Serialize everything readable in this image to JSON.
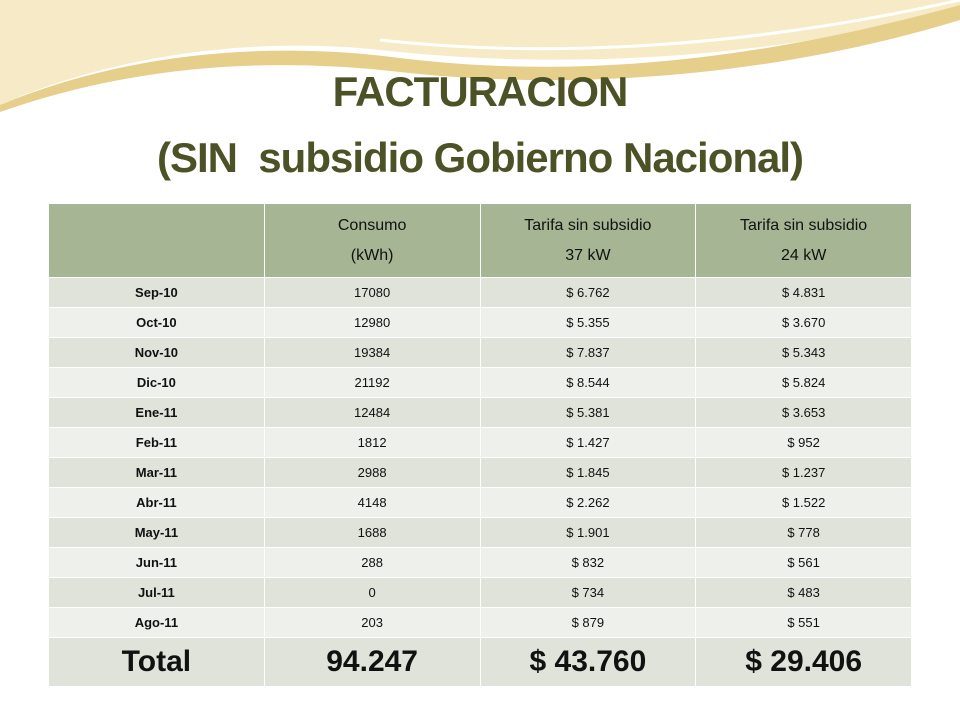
{
  "title": {
    "line1": "FACTURACION",
    "line2": "(SIN  subsidio Gobierno Nacional)"
  },
  "table": {
    "header": [
      [
        "Consumo",
        "(kWh)"
      ],
      [
        "Tarifa sin subsidio",
        "37 kW"
      ],
      [
        "Tarifa sin subsidio",
        "24 kW"
      ]
    ],
    "rows": [
      [
        "Sep-10",
        "17080",
        "$ 6.762",
        "$ 4.831"
      ],
      [
        "Oct-10",
        "12980",
        "$ 5.355",
        "$ 3.670"
      ],
      [
        "Nov-10",
        "19384",
        "$ 7.837",
        "$ 5.343"
      ],
      [
        "Dic-10",
        "21192",
        "$ 8.544",
        "$ 5.824"
      ],
      [
        "Ene-11",
        "12484",
        "$ 5.381",
        "$ 3.653"
      ],
      [
        "Feb-11",
        "1812",
        "$ 1.427",
        "$ 952"
      ],
      [
        "Mar-11",
        "2988",
        "$ 1.845",
        "$ 1.237"
      ],
      [
        "Abr-11",
        "4148",
        "$ 2.262",
        "$ 1.522"
      ],
      [
        "May-11",
        "1688",
        "$ 1.901",
        "$ 778"
      ],
      [
        "Jun-11",
        "288",
        "$ 832",
        "$ 561"
      ],
      [
        "Jul-11",
        "0",
        "$ 734",
        "$ 483"
      ],
      [
        "Ago-11",
        "203",
        "$ 879",
        "$ 551"
      ]
    ],
    "total": [
      "Total",
      "94.247",
      "$ 43.760",
      "$ 29.406"
    ]
  }
}
